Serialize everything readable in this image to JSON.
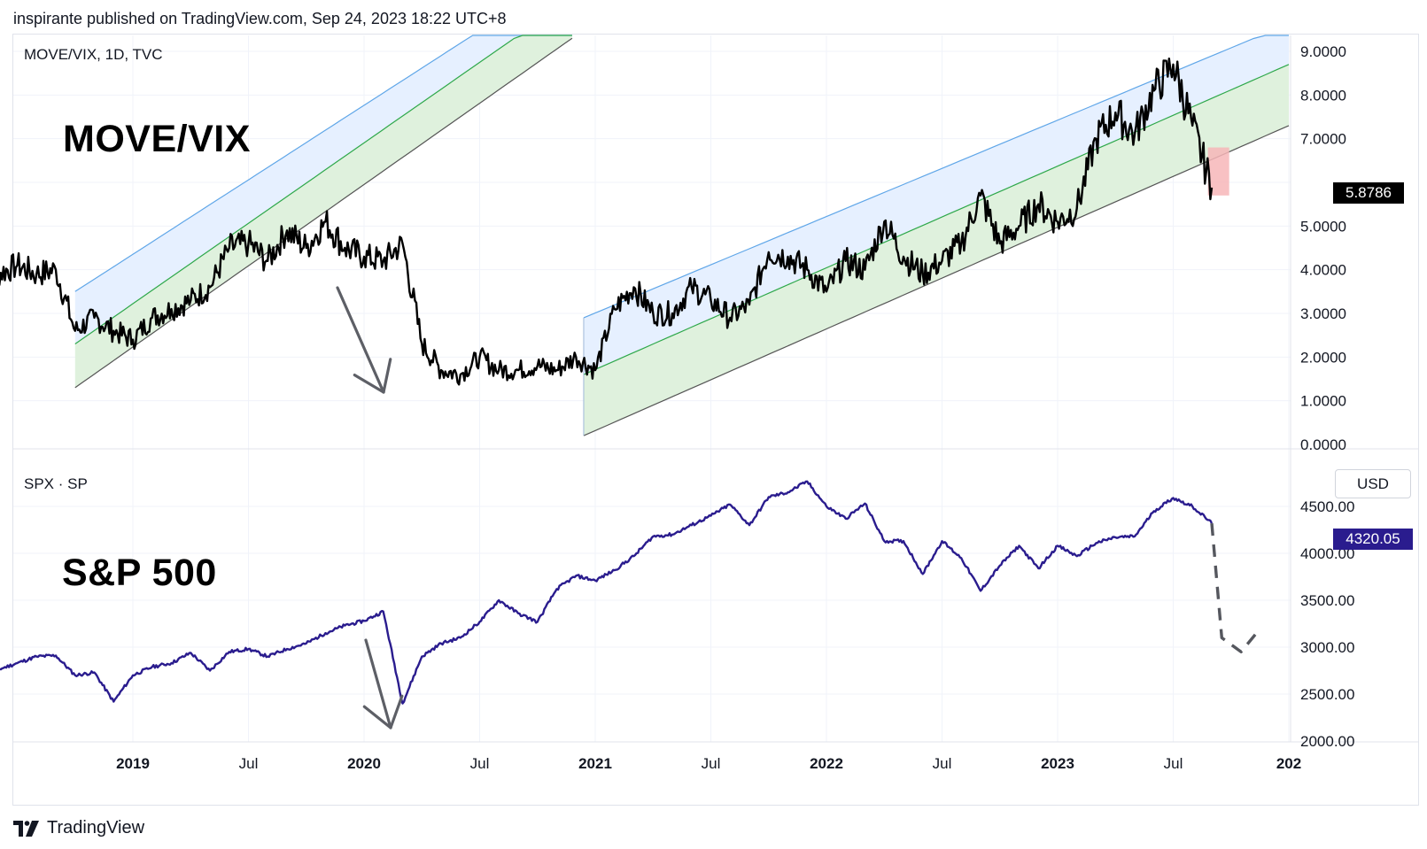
{
  "header": {
    "publish_text": "inspirante published on TradingView.com, Sep 24, 2023 18:22 UTC+8"
  },
  "footer": {
    "brand": "TradingView"
  },
  "colors": {
    "move_line": "#000000",
    "spx_line": "#2a1c8e",
    "upper_line": "#5fa6e8",
    "mid_line": "#2ea84a",
    "lower_line": "#555555",
    "upper_fill": "#e6f0ff",
    "lower_fill": "#dff1dd",
    "red_box": "#f7b6b9",
    "arrow": "#5d5f66",
    "grid": "#f0f3fa"
  },
  "chart_data": [
    {
      "type": "line",
      "panel": "top",
      "symbol_label": "MOVE/VIX, 1D, TVC",
      "title": "MOVE/VIX",
      "y_ticks": [
        "9.0000",
        "8.0000",
        "7.0000",
        "5.0000",
        "4.0000",
        "3.0000",
        "2.0000",
        "1.0000",
        "0.0000"
      ],
      "ylim": [
        0,
        9
      ],
      "last_value": "5.8786",
      "x_ticks": [
        "2019",
        "Jul",
        "2020",
        "Jul",
        "2021",
        "Jul",
        "2022",
        "Jul",
        "2023",
        "Jul",
        "202"
      ],
      "series": [
        {
          "x": [
            "2018-05",
            "2018-06",
            "2018-07",
            "2018-08",
            "2018-09",
            "2018-10",
            "2018-11",
            "2018-12",
            "2019-01",
            "2019-02",
            "2019-03",
            "2019-04",
            "2019-05",
            "2019-06",
            "2019-07",
            "2019-08",
            "2019-09",
            "2019-10",
            "2019-11",
            "2019-12",
            "2020-01",
            "2020-02",
            "2020-03",
            "2020-04",
            "2020-05",
            "2020-06",
            "2020-07",
            "2020-08",
            "2020-09",
            "2020-10",
            "2020-11",
            "2020-12",
            "2021-01",
            "2021-02",
            "2021-03",
            "2021-04",
            "2021-05",
            "2021-06",
            "2021-07",
            "2021-08",
            "2021-09",
            "2021-10",
            "2021-11",
            "2021-12",
            "2022-01",
            "2022-02",
            "2022-03",
            "2022-04",
            "2022-05",
            "2022-06",
            "2022-07",
            "2022-08",
            "2022-09",
            "2022-10",
            "2022-11",
            "2022-12",
            "2023-01",
            "2023-02",
            "2023-03",
            "2023-04",
            "2023-05",
            "2023-06",
            "2023-07",
            "2023-08",
            "2023-09"
          ],
          "values": [
            3.1,
            3.9,
            4.1,
            3.9,
            4.0,
            2.6,
            2.9,
            2.6,
            2.4,
            2.9,
            3.1,
            3.3,
            3.6,
            4.5,
            4.6,
            4.2,
            4.9,
            4.5,
            5.1,
            4.5,
            4.3,
            4.2,
            4.6,
            2.3,
            1.7,
            1.6,
            2.0,
            1.7,
            1.7,
            1.8,
            1.7,
            2.0,
            1.7,
            3.1,
            3.6,
            3.0,
            3.0,
            3.6,
            3.3,
            2.9,
            3.2,
            4.4,
            4.3,
            4.0,
            3.5,
            4.2,
            4.0,
            5.1,
            4.3,
            3.9,
            4.2,
            4.6,
            5.7,
            4.6,
            5.0,
            5.5,
            5.1,
            5.4,
            7.0,
            7.6,
            7.1,
            8.1,
            8.7,
            7.3,
            5.88
          ]
        }
      ],
      "channels": [
        {
          "name": "left",
          "upper": [
            [
              2018.75,
              3.5
            ],
            [
              2020.45,
              9.3
            ]
          ],
          "mid": [
            [
              2018.75,
              2.3
            ],
            [
              2020.65,
              9.3
            ]
          ],
          "lower": [
            [
              2018.75,
              1.3
            ],
            [
              2020.9,
              9.3
            ]
          ]
        },
        {
          "name": "right",
          "upper": [
            [
              2020.95,
              2.9
            ],
            [
              2023.85,
              9.3
            ]
          ],
          "mid": [
            [
              2020.95,
              1.6
            ],
            [
              2024.0,
              8.7
            ]
          ],
          "lower": [
            [
              2020.95,
              0.2
            ],
            [
              2024.0,
              7.3
            ]
          ]
        }
      ]
    },
    {
      "type": "line",
      "panel": "bottom",
      "symbol_label": "SPX · SP",
      "title": "S&P 500",
      "currency": "USD",
      "y_ticks": [
        "4500.00",
        "4000.00",
        "3500.00",
        "3000.00",
        "2500.00",
        "2000.00"
      ],
      "ylim": [
        2000,
        4800
      ],
      "last_value": "4320.05",
      "series": [
        {
          "x": [
            "2018-05",
            "2018-06",
            "2018-07",
            "2018-08",
            "2018-09",
            "2018-10",
            "2018-11",
            "2018-12",
            "2019-01",
            "2019-02",
            "2019-03",
            "2019-04",
            "2019-05",
            "2019-06",
            "2019-07",
            "2019-08",
            "2019-09",
            "2019-10",
            "2019-11",
            "2019-12",
            "2020-01",
            "2020-02",
            "2020-03",
            "2020-04",
            "2020-05",
            "2020-06",
            "2020-07",
            "2020-08",
            "2020-09",
            "2020-10",
            "2020-11",
            "2020-12",
            "2021-01",
            "2021-02",
            "2021-03",
            "2021-04",
            "2021-05",
            "2021-06",
            "2021-07",
            "2021-08",
            "2021-09",
            "2021-10",
            "2021-11",
            "2021-12",
            "2022-01",
            "2022-02",
            "2022-03",
            "2022-04",
            "2022-05",
            "2022-06",
            "2022-07",
            "2022-08",
            "2022-09",
            "2022-10",
            "2022-11",
            "2022-12",
            "2023-01",
            "2023-02",
            "2023-03",
            "2023-04",
            "2023-05",
            "2023-06",
            "2023-07",
            "2023-08",
            "2023-09"
          ],
          "values": [
            2700,
            2760,
            2830,
            2900,
            2910,
            2700,
            2730,
            2420,
            2700,
            2790,
            2830,
            2940,
            2750,
            2950,
            2980,
            2900,
            2980,
            3040,
            3150,
            3230,
            3280,
            3380,
            2400,
            2900,
            3040,
            3100,
            3270,
            3500,
            3360,
            3270,
            3620,
            3760,
            3710,
            3820,
            3970,
            4180,
            4200,
            4300,
            4400,
            4520,
            4300,
            4600,
            4650,
            4766,
            4500,
            4370,
            4530,
            4130,
            4130,
            3780,
            4130,
            3950,
            3600,
            3870,
            4080,
            3840,
            4080,
            3970,
            4110,
            4170,
            4180,
            4450,
            4590,
            4500,
            4320
          ]
        },
        {
          "name": "projection",
          "style": "dashed",
          "x": [
            "2023-09",
            "2023-10",
            "2023-11",
            "2023-12"
          ],
          "values": [
            4320,
            3100,
            2950,
            3200
          ]
        }
      ]
    }
  ]
}
